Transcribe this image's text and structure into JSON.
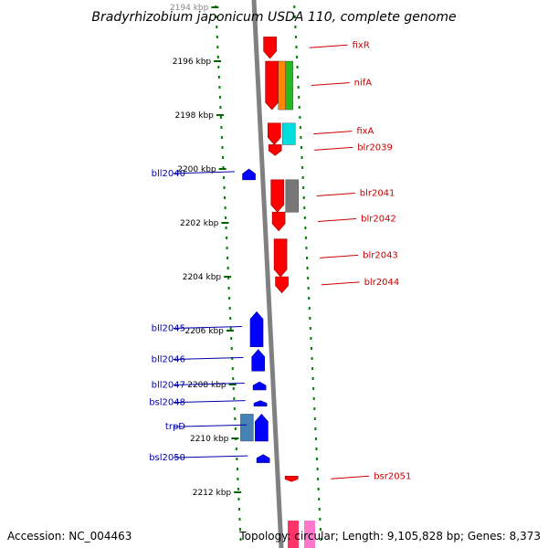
{
  "title": "Bradyrhizobium japonicum USDA 110, complete genome",
  "footer": {
    "accession": "Accession: NC_004463",
    "summary": "Topology: circular; Length: 9,105,828 bp; Genes: 8,373"
  },
  "colors": {
    "forward": "#ff0000",
    "reverse": "#0000ff",
    "backbone": "#808080",
    "dotted_ring": "#008000",
    "forward_label": "#cc0000",
    "reverse_label": "#0000aa"
  },
  "ticks": [
    {
      "label": "2194 kbp",
      "kbp": 2194
    },
    {
      "label": "2196 kbp",
      "kbp": 2196
    },
    {
      "label": "2198 kbp",
      "kbp": 2198
    },
    {
      "label": "2200 kbp",
      "kbp": 2200
    },
    {
      "label": "2202 kbp",
      "kbp": 2202
    },
    {
      "label": "2204 kbp",
      "kbp": 2204
    },
    {
      "label": "2206 kbp",
      "kbp": 2206
    },
    {
      "label": "2208 kbp",
      "kbp": 2208
    },
    {
      "label": "2210 kbp",
      "kbp": 2210
    },
    {
      "label": "2212 kbp",
      "kbp": 2212
    }
  ],
  "genes": [
    {
      "label": "fixR",
      "strand": "forward",
      "start_kbp": 2195.1,
      "end_kbp": 2195.9
    },
    {
      "label": "nifA",
      "strand": "forward",
      "start_kbp": 2196.0,
      "end_kbp": 2197.8,
      "extra_colors": [
        "#ff8800",
        "#22bb22"
      ]
    },
    {
      "label": "fixA",
      "strand": "forward",
      "start_kbp": 2198.3,
      "end_kbp": 2199.1,
      "extra_colors": [
        "#00dddd"
      ]
    },
    {
      "label": "blr2039",
      "strand": "forward",
      "start_kbp": 2199.1,
      "end_kbp": 2199.5
    },
    {
      "label": "bll2040",
      "strand": "reverse",
      "start_kbp": 2200.0,
      "end_kbp": 2200.4
    },
    {
      "label": "blr2041",
      "strand": "forward",
      "start_kbp": 2200.4,
      "end_kbp": 2201.6,
      "extra_colors": [
        "#777777"
      ]
    },
    {
      "label": "blr2042",
      "strand": "forward",
      "start_kbp": 2201.6,
      "end_kbp": 2202.3
    },
    {
      "label": "blr2043",
      "strand": "forward",
      "start_kbp": 2202.6,
      "end_kbp": 2204.0
    },
    {
      "label": "blr2044",
      "strand": "forward",
      "start_kbp": 2204.0,
      "end_kbp": 2204.6
    },
    {
      "label": "bll2045",
      "strand": "reverse",
      "start_kbp": 2205.3,
      "end_kbp": 2206.6
    },
    {
      "label": "bll2046",
      "strand": "reverse",
      "start_kbp": 2206.7,
      "end_kbp": 2207.5
    },
    {
      "label": "bll2047",
      "strand": "reverse",
      "start_kbp": 2207.9,
      "end_kbp": 2208.2
    },
    {
      "label": "bsl2048",
      "strand": "reverse",
      "start_kbp": 2208.6,
      "end_kbp": 2208.8
    },
    {
      "label": "trpD",
      "strand": "reverse",
      "start_kbp": 2209.1,
      "end_kbp": 2210.1,
      "extra_colors": [
        "#4682b4"
      ]
    },
    {
      "label": "bsl2050",
      "strand": "reverse",
      "start_kbp": 2210.6,
      "end_kbp": 2210.9
    },
    {
      "label": "bsr2051",
      "strand": "forward",
      "start_kbp": 2211.4,
      "end_kbp": 2211.6
    }
  ]
}
